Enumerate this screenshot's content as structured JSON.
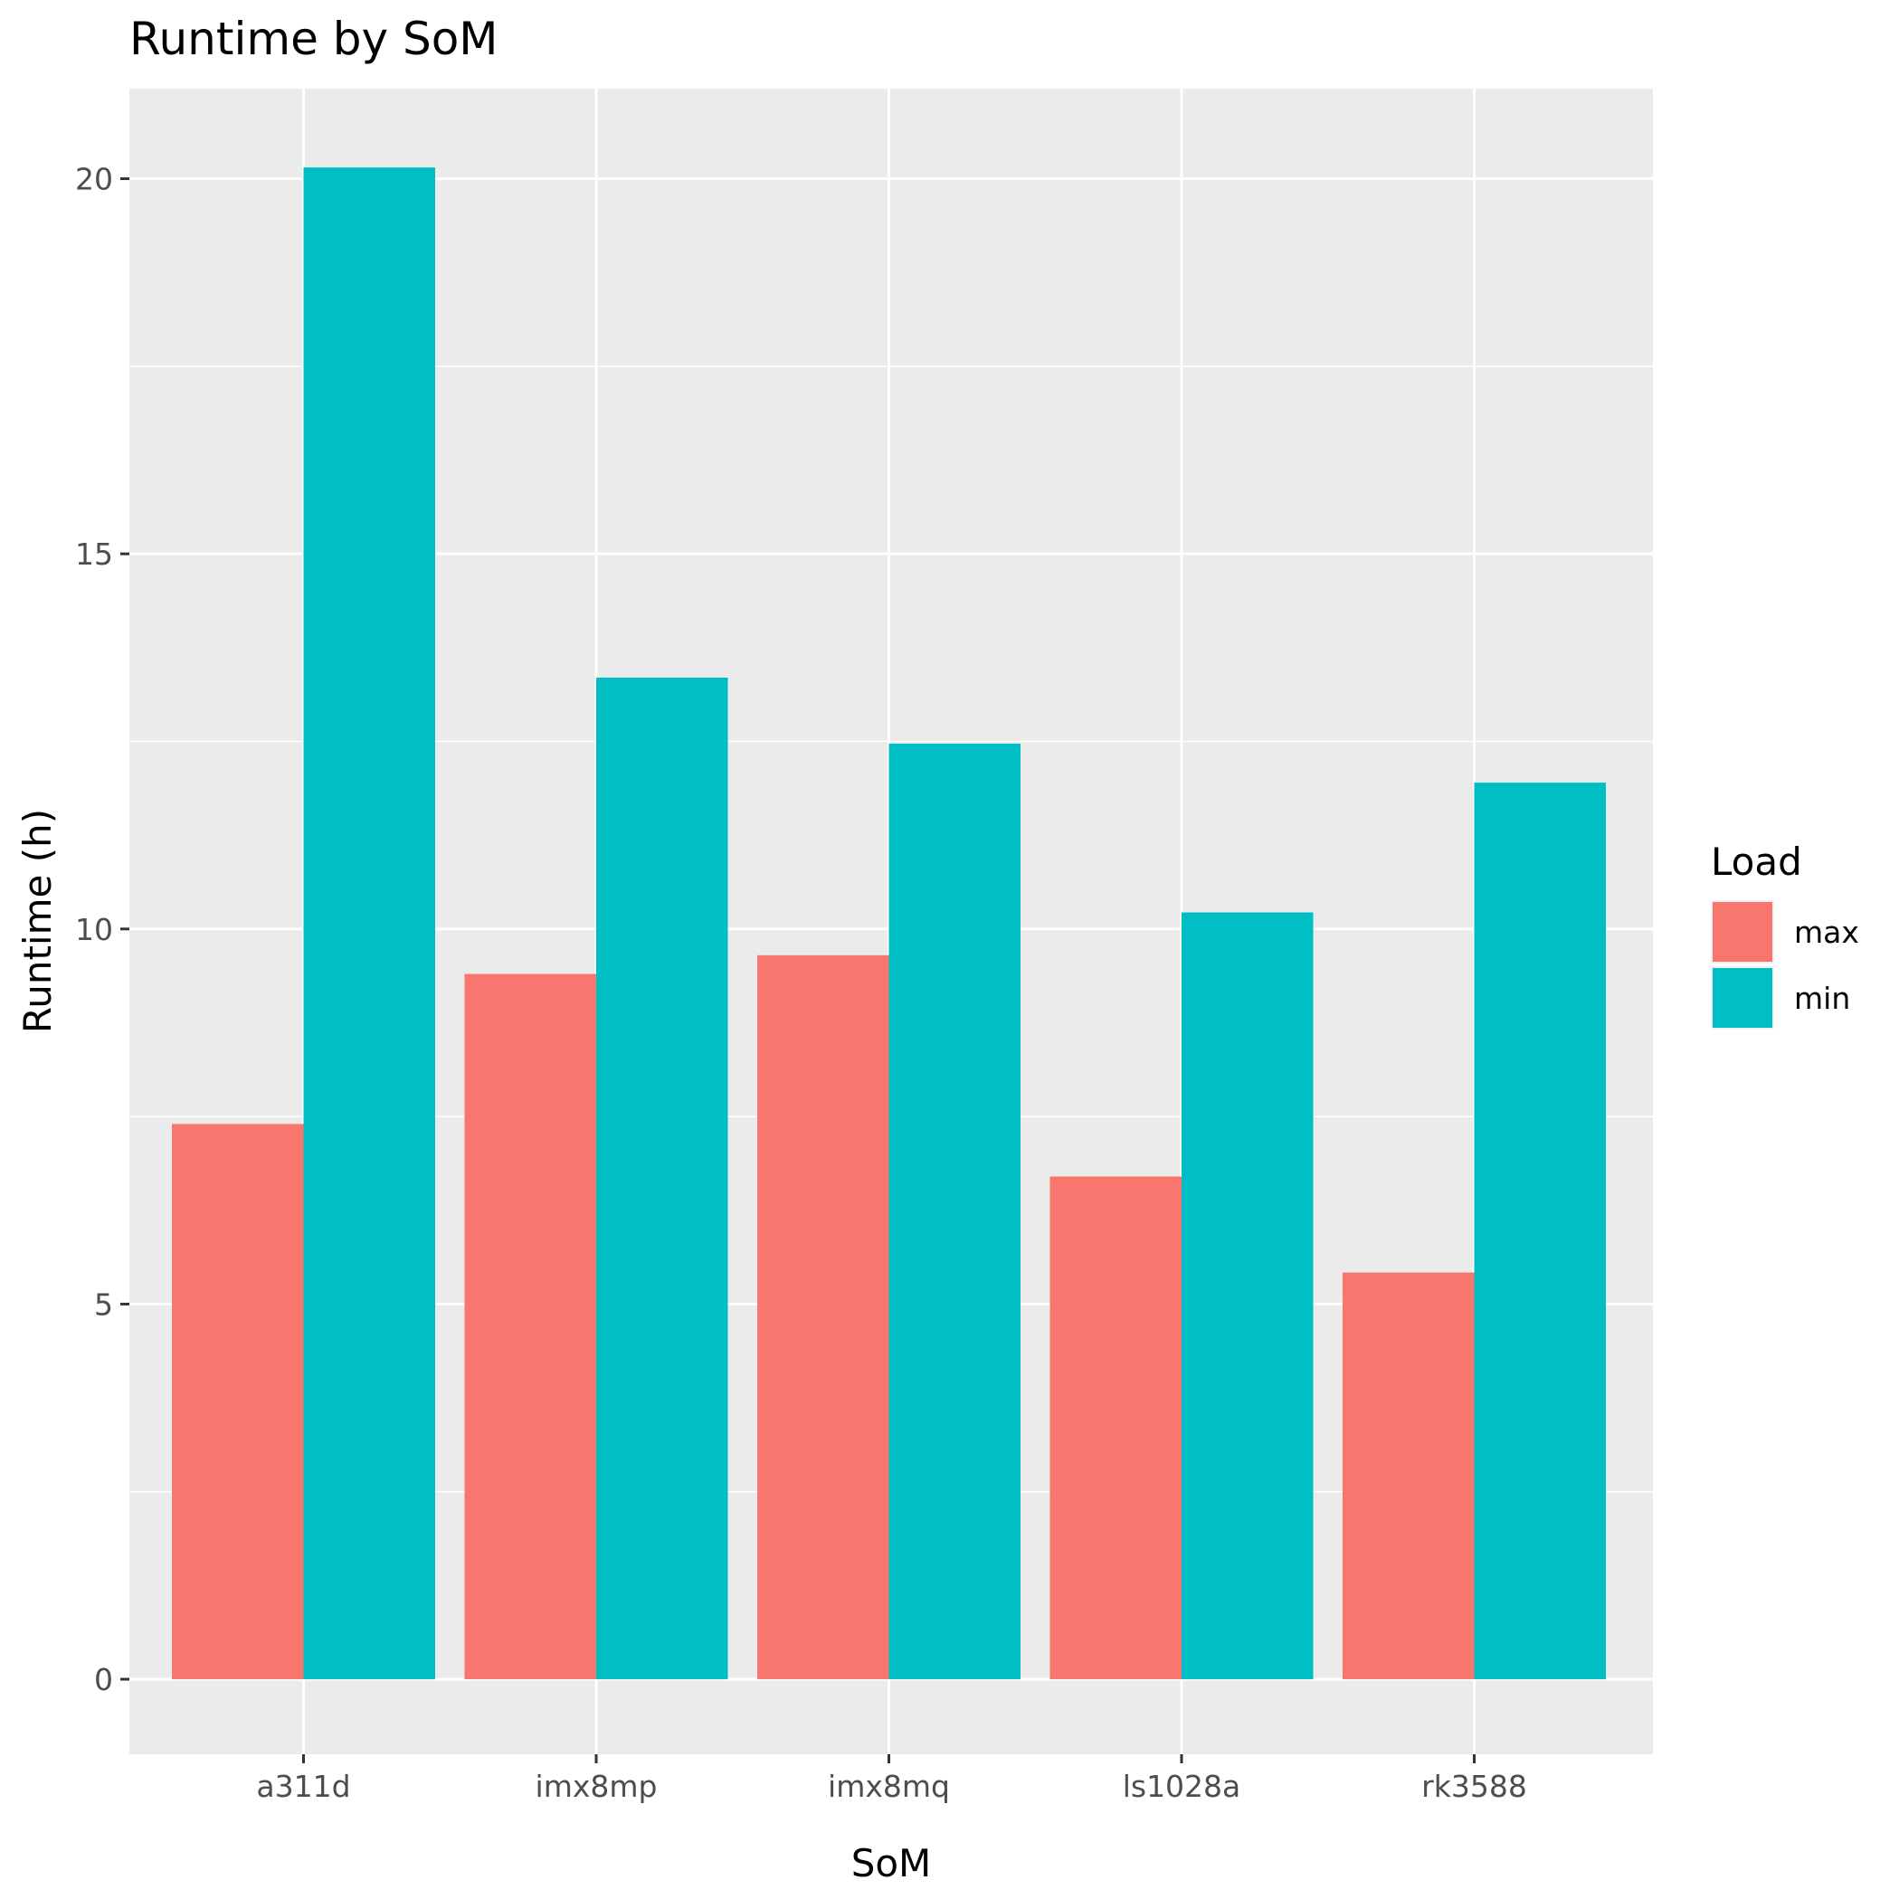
{
  "chart_data": {
    "type": "bar",
    "title": "Runtime by SoM",
    "xlabel": "SoM",
    "ylabel": "Runtime (h)",
    "categories": [
      "a311d",
      "imx8mp",
      "imx8mq",
      "ls1028a",
      "rk3588"
    ],
    "series": [
      {
        "name": "max",
        "color": "#F8766D",
        "values": [
          7.4,
          9.4,
          9.65,
          6.7,
          5.42
        ]
      },
      {
        "name": "min",
        "color": "#00BFC4",
        "values": [
          20.15,
          13.35,
          12.47,
          10.22,
          11.95
        ]
      }
    ],
    "ylim": [
      -1.0,
      21.2
    ],
    "yticks": [
      0,
      5,
      10,
      15,
      20
    ],
    "legend": {
      "title": "Load",
      "position": "right"
    },
    "grid": true,
    "panel_background": "#EBEBEB",
    "gridline_color": "#FFFFFF",
    "tick_label_color": "#4D4D4D"
  }
}
